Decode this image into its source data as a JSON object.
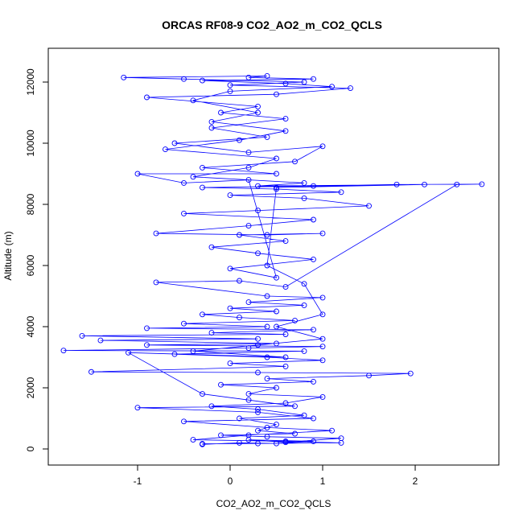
{
  "chart_data": {
    "type": "line",
    "markers": true,
    "title": "ORCAS RF08-9 CO2_AO2_m_CO2_QCLS",
    "xlabel": "CO2_AO2_m_CO2_QCLS",
    "ylabel": "Altitude (m)",
    "color": "#0000ff",
    "xlim": [
      -1.965,
      2.904
    ],
    "ylim": [
      -526,
      13105
    ],
    "xticks": [
      -1,
      0,
      1,
      2
    ],
    "yticks": [
      0,
      2000,
      4000,
      6000,
      8000,
      10000,
      12000
    ],
    "x": [
      -0.3,
      0.1,
      0.5,
      0.9,
      0.2,
      0.6,
      1.2,
      0.4,
      -0.1,
      0.7,
      0.3,
      0.5,
      0.1,
      0.8,
      0.3,
      -0.2,
      0.6,
      1.0,
      0.2,
      0.5,
      -0.1,
      0.9,
      0.4,
      1.5,
      1.95,
      0.3,
      -1.5,
      0.6,
      0.0,
      1.0,
      0.4,
      -0.6,
      0.8,
      -1.8,
      0.2,
      1.0,
      -0.9,
      0.5,
      -1.4,
      0.3,
      -1.6,
      0.6,
      -0.2,
      0.9,
      -0.9,
      0.4,
      -0.5,
      0.7,
      0.1,
      -0.3,
      0.5,
      0.0,
      0.8,
      0.2,
      1.0,
      0.4,
      -0.8,
      0.1,
      0.6,
      2.45,
      2.72,
      1.8,
      0.9,
      -0.3,
      0.5,
      1.2,
      0.0,
      0.8,
      1.5,
      0.3,
      -0.5,
      0.9,
      0.2,
      -0.8,
      0.4,
      1.0,
      0.1,
      0.6,
      -0.2,
      0.3,
      0.9,
      0.0,
      0.5,
      0.2,
      -0.5,
      -1.0,
      0.5,
      -0.3,
      0.7,
      1.0,
      0.2,
      -0.6,
      0.4,
      -0.2,
      0.6,
      -0.1,
      0.3,
      -0.9,
      0.5,
      1.3,
      0.0,
      0.8,
      -0.5,
      -1.15,
      0.4,
      0.2,
      0.9,
      -0.3,
      0.6,
      1.1,
      0.0,
      -0.4,
      0.3,
      -0.2,
      0.6,
      0.1,
      -0.7,
      0.5,
      0.2,
      -0.4,
      0.8,
      0.3,
      2.1,
      0.5,
      0.4,
      0.8,
      1.0,
      0.5,
      1.0,
      0.3,
      -0.4,
      0.6,
      -1.1,
      -0.3,
      0.2,
      0.7,
      -1.0,
      0.3,
      0.9,
      -0.5,
      0.4,
      1.1,
      0.2,
      -0.4,
      0.6,
      1.2,
      0.3,
      -0.3
    ],
    "values": [
      150,
      200,
      180,
      250,
      300,
      220,
      350,
      400,
      450,
      500,
      600,
      800,
      1000,
      1100,
      1300,
      1400,
      1500,
      1700,
      1800,
      2000,
      2100,
      2200,
      2300,
      2400,
      2470,
      2500,
      2520,
      2700,
      2800,
      2900,
      3000,
      3100,
      3200,
      3220,
      3300,
      3350,
      3400,
      3450,
      3550,
      3600,
      3700,
      3750,
      3800,
      3900,
      3950,
      4000,
      4100,
      4200,
      4300,
      4400,
      4500,
      4600,
      4700,
      4800,
      4950,
      5000,
      5450,
      5500,
      5300,
      8650,
      8660,
      8650,
      8600,
      8550,
      8500,
      8400,
      8300,
      8200,
      7950,
      7800,
      7700,
      7500,
      7300,
      7050,
      7000,
      7050,
      7000,
      6800,
      6600,
      6400,
      6200,
      5900,
      5600,
      8800,
      8700,
      9000,
      9000,
      9200,
      9400,
      9900,
      9700,
      10000,
      10200,
      10500,
      10800,
      11000,
      11200,
      11500,
      11600,
      11800,
      11900,
      12000,
      12100,
      12150,
      12200,
      12150,
      12100,
      12050,
      11950,
      11850,
      11700,
      11400,
      11000,
      10700,
      10400,
      10100,
      9800,
      9500,
      9200,
      8900,
      8700,
      8600,
      8650,
      8550,
      6000,
      5400,
      4400,
      4000,
      3600,
      3400,
      3200,
      3000,
      3150,
      1800,
      1600,
      1400,
      1350,
      1200,
      1000,
      900,
      700,
      600,
      450,
      300,
      250,
      200,
      180,
      170
    ]
  }
}
